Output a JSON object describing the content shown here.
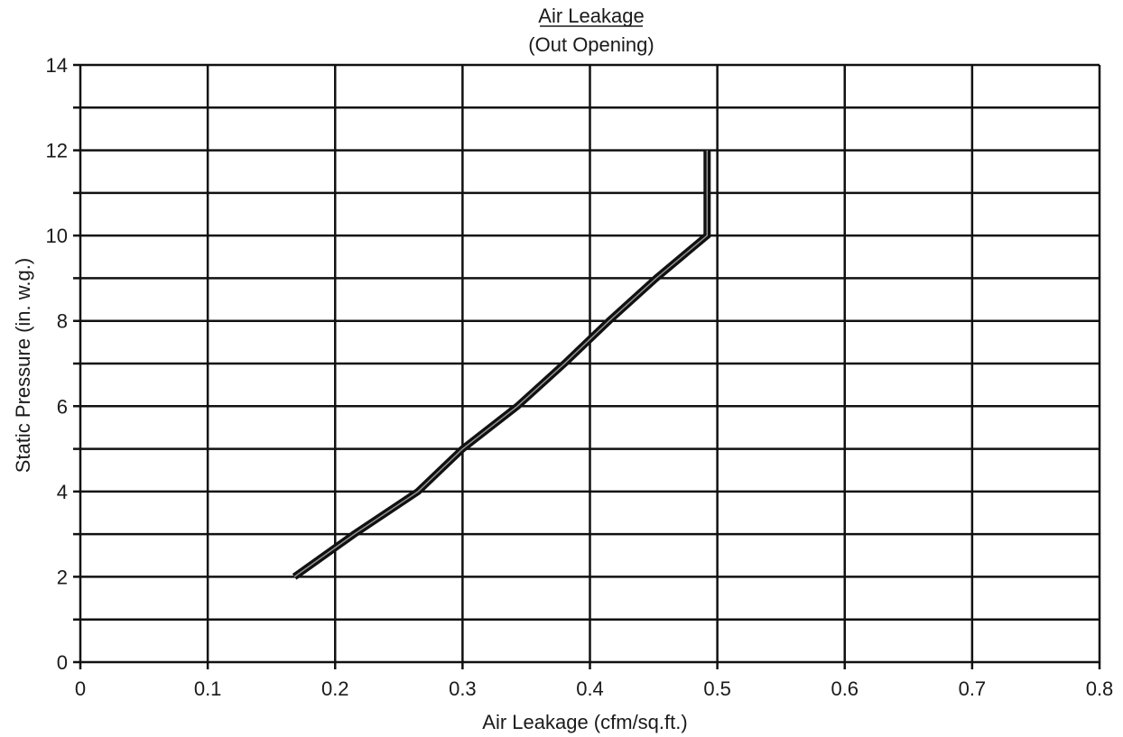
{
  "chart_data": {
    "type": "line",
    "title": "Air Leakage",
    "subtitle": "(Out Opening)",
    "xlabel": "Air Leakage (cfm/sq.ft.)",
    "ylabel": "Static Pressure (in. w.g.)",
    "xlim": [
      0,
      0.8
    ],
    "ylim": [
      0,
      14
    ],
    "xticks": [
      0,
      0.1,
      0.2,
      0.3,
      0.4,
      0.5,
      0.6,
      0.7,
      0.8
    ],
    "xtick_labels": [
      "0",
      "0.1",
      "0.2",
      "0.3",
      "0.4",
      "0.5",
      "0.6",
      "0.7",
      "0.8"
    ],
    "yticks": [
      0,
      2,
      4,
      6,
      8,
      10,
      12,
      14
    ],
    "ytick_labels": [
      "0",
      "2",
      "4",
      "6",
      "8",
      "10",
      "12",
      "14"
    ],
    "grid": true,
    "grid_y_step": 1,
    "grid_x_step": 0.1,
    "legend": "none",
    "series": [
      {
        "color": "#111111",
        "x": [
          0.168,
          0.215,
          0.265,
          0.3,
          0.343,
          0.38,
          0.415,
          0.452,
          0.492,
          0.492
        ],
        "y": [
          2,
          3,
          4,
          5,
          6,
          7,
          8,
          9,
          10,
          12
        ]
      }
    ]
  }
}
